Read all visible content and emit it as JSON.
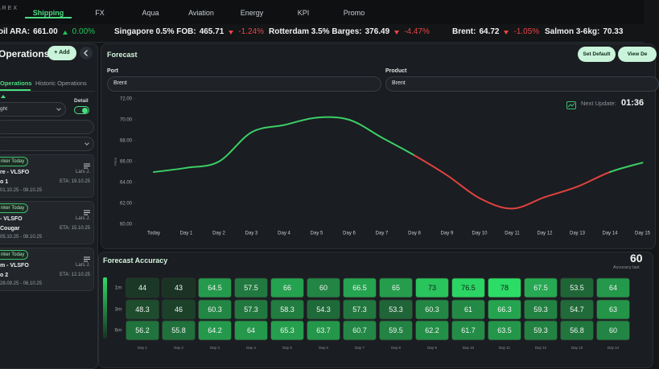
{
  "nav": {
    "logo": "AREX",
    "tabs": [
      "Shipping",
      "FX",
      "Aqua",
      "Aviation",
      "Energy",
      "KPI",
      "Promo"
    ],
    "active_tab": 0
  },
  "ticker": [
    {
      "name": "oil ARA:",
      "price": "661.00",
      "change": "0.00%",
      "trend": "up"
    },
    {
      "name": "Singapore 0.5% FOB:",
      "price": "465.71",
      "change": "-1.24%",
      "trend": "down"
    },
    {
      "name": "Rotterdam 3.5% Barges:",
      "price": "376.49",
      "change": "-4.47%",
      "trend": "down"
    },
    {
      "name": "Brent:",
      "price": "64.72",
      "change": "-1.05%",
      "trend": "down"
    },
    {
      "name": "Salmon 3-6kg:",
      "price": "70.33"
    }
  ],
  "sidebar": {
    "title": "Operations",
    "add_button": "+ Add",
    "tabs": [
      "Operations",
      "Historic Operations"
    ],
    "active_tab": 0,
    "filter": "ght",
    "detail_label": "Detail",
    "cards": [
      {
        "badge": "nker Today",
        "title": "re - VLSFO",
        "owner": "Lars J.",
        "vessel": "o 1",
        "eta": "ETA: 19.10.25",
        "dates": "01.10.25 - 08.10.25"
      },
      {
        "badge": "nker Today",
        "title": " - VLSFO",
        "owner": "Lars J.",
        "vessel": "Cougar",
        "eta": "ETA: 15.10.25",
        "dates": "05.10.25 - 08.10.25"
      },
      {
        "badge": "nker Today",
        "title": "m - VLSFO",
        "owner": "Lars J.",
        "vessel": "o 2",
        "eta": "ETA: 12.10.25",
        "dates": "28.09.25 - 06.10.25"
      }
    ]
  },
  "forecast_panel": {
    "title": "Forecast",
    "buttons": [
      "Set Default",
      "View De"
    ],
    "port_label": "Port",
    "port": "Brent",
    "product_label": "Product",
    "product": "Brent",
    "next_update_label": "Next Update:",
    "next_update": "01:36"
  },
  "accuracy_panel": {
    "title": "Forecast Accuracy",
    "score": "60",
    "score_label": "Accuracy last"
  },
  "chart_data": [
    {
      "type": "line",
      "ylabel": "Price",
      "categories": [
        "Today",
        "Day 1",
        "Day 2",
        "Day 3",
        "Day 4",
        "Day 5",
        "Day 6",
        "Day 7",
        "Day 8",
        "Day 9",
        "Day 10",
        "Day 11",
        "Day 12",
        "Day 13",
        "Day 14",
        "Day 15"
      ],
      "values": [
        65.0,
        65.4,
        66.0,
        68.8,
        69.5,
        70.2,
        70.0,
        68.3,
        66.6,
        64.7,
        62.5,
        61.5,
        62.6,
        63.6,
        65.0,
        65.9
      ],
      "point_colors": [
        "#3ccf67",
        "#3ccf67",
        "#3ccf67",
        "#3ccf67",
        "#3ccf67",
        "#3ccf67",
        "#3ccf67",
        "#3ccf67",
        "#3ccf67",
        "#e0433f",
        "#e0433f",
        "#e0433f",
        "#e0433f",
        "#e0433f",
        "#e0433f",
        "#3ccf67"
      ],
      "ylim": [
        60,
        72
      ],
      "yticks": [
        {
          "value": 60,
          "label": "60.00"
        },
        {
          "value": 62,
          "label": "62.00"
        },
        {
          "value": 64,
          "label": "64.00"
        },
        {
          "value": 66,
          "label": "66.00"
        },
        {
          "value": 68,
          "label": "68.00"
        },
        {
          "value": 70,
          "label": "70.00"
        },
        {
          "value": 72,
          "label": "72.00"
        }
      ]
    },
    {
      "type": "heatmap",
      "rows": [
        "1m",
        "3m",
        "6m"
      ],
      "columns": [
        "Day 1",
        "Day 2",
        "Day 3",
        "Day 4",
        "Day 5",
        "Day 6",
        "Day 7",
        "Day 8",
        "Day 9",
        "Day 10",
        "Day 11",
        "Day 12",
        "Day 13",
        "Day 14"
      ],
      "values": [
        [
          44,
          43,
          64.5,
          57.5,
          66,
          60,
          66.5,
          65,
          73,
          76.5,
          78,
          67.5,
          53.5,
          64
        ],
        [
          48.3,
          46,
          60.3,
          57.3,
          58.3,
          54.3,
          57.3,
          53.3,
          60.3,
          61,
          66.3,
          59.3,
          54.7,
          63
        ],
        [
          56.2,
          55.8,
          64.2,
          64,
          65.3,
          63.7,
          60.7,
          59.5,
          62.2,
          61.7,
          63.5,
          59.3,
          56.8,
          60
        ]
      ],
      "color_low": "#1a3323",
      "color_high": "#2bdc66"
    }
  ]
}
